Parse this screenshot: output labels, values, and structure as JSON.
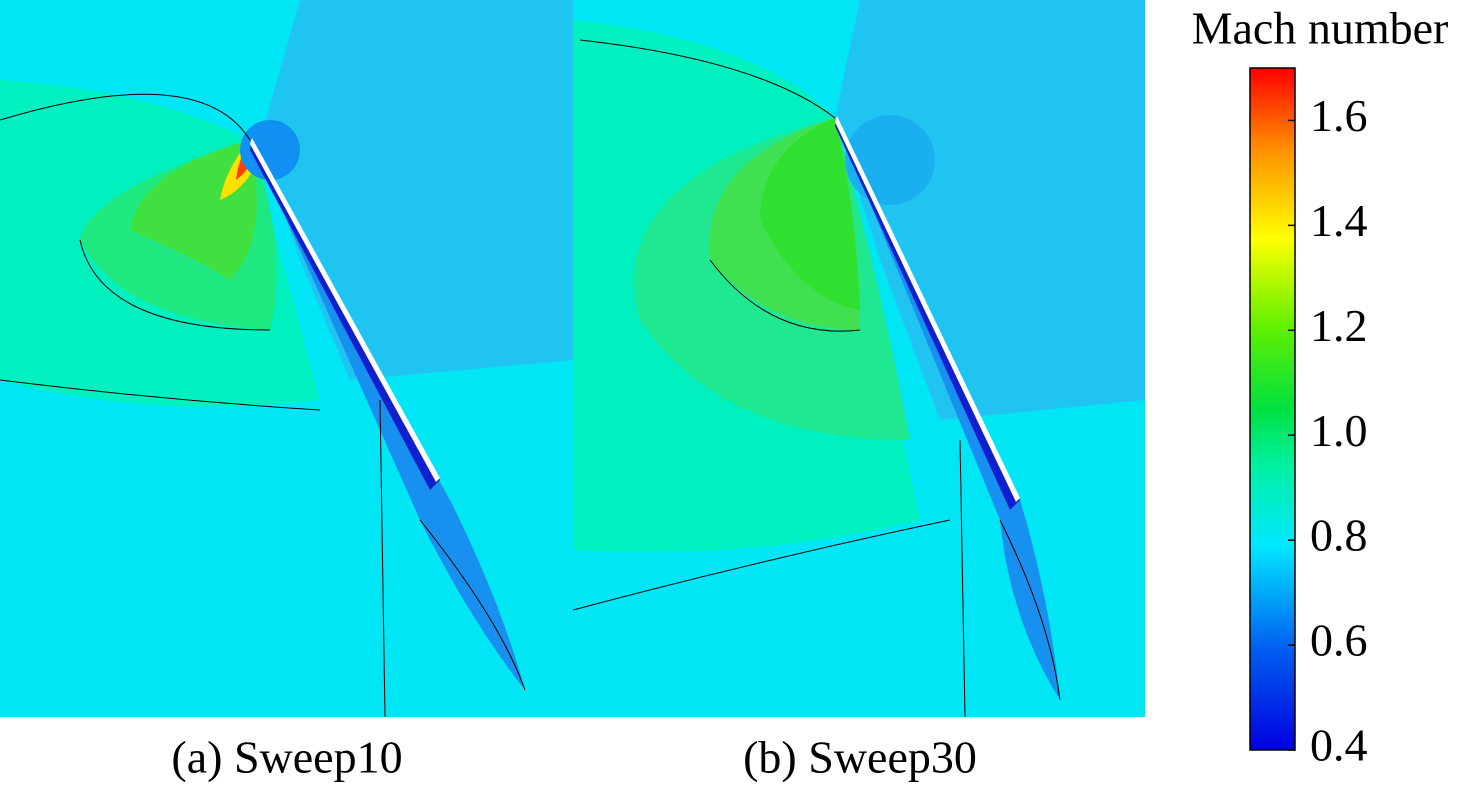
{
  "panels": [
    {
      "caption": "(a) Sweep10"
    },
    {
      "caption": "(b) Sweep30"
    }
  ],
  "colorbar": {
    "title": "Mach number",
    "range": [
      0.4,
      1.7
    ],
    "ticks": [
      0.4,
      0.6,
      0.8,
      {
        "value": 1,
        "label": "1.0"
      },
      1.2,
      1.4,
      1.6
    ]
  }
}
